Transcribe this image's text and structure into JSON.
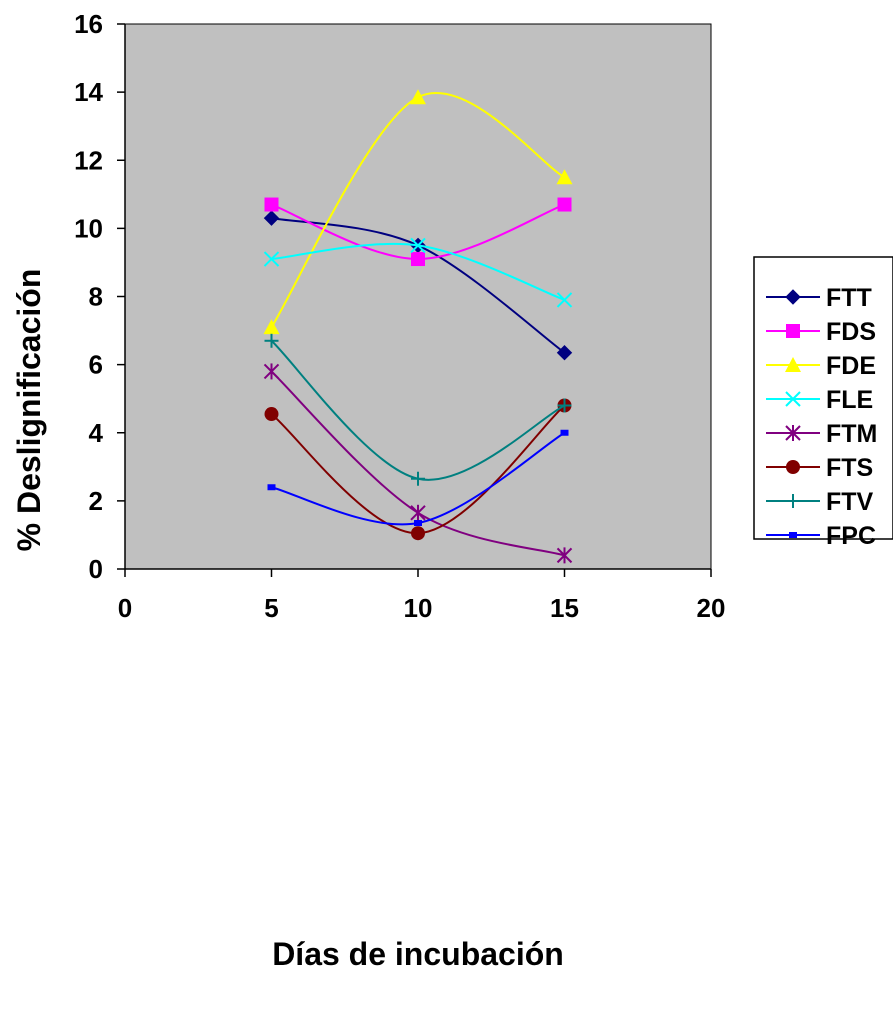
{
  "chart_data": {
    "type": "line",
    "title": "",
    "xlabel": "Días de incubación",
    "ylabel": "% Deslignificación",
    "xlim": [
      0,
      20
    ],
    "ylim": [
      0,
      16
    ],
    "xticks": [
      0,
      5,
      10,
      15,
      20
    ],
    "yticks": [
      0,
      2,
      4,
      6,
      8,
      10,
      12,
      14,
      16
    ],
    "x": [
      5,
      10,
      15
    ],
    "grid": false,
    "plot_background": "#c0c0c0",
    "legend_position": "right",
    "series": [
      {
        "name": "FTT",
        "values": [
          10.3,
          9.5,
          6.35
        ],
        "color": "#000080",
        "marker": "diamond"
      },
      {
        "name": "FDS",
        "values": [
          10.7,
          9.1,
          10.7
        ],
        "color": "#ff00ff",
        "marker": "square"
      },
      {
        "name": "FDE",
        "values": [
          7.1,
          13.85,
          11.5
        ],
        "color": "#ffff00",
        "marker": "triangle"
      },
      {
        "name": "FLE",
        "values": [
          9.1,
          9.5,
          7.9
        ],
        "color": "#00ffff",
        "marker": "x"
      },
      {
        "name": "FTM",
        "values": [
          5.8,
          1.65,
          0.4
        ],
        "color": "#800080",
        "marker": "asterisk"
      },
      {
        "name": "FTS",
        "values": [
          4.55,
          1.05,
          4.8
        ],
        "color": "#800000",
        "marker": "circle"
      },
      {
        "name": "FTV",
        "values": [
          6.7,
          2.65,
          4.8
        ],
        "color": "#008080",
        "marker": "plus"
      },
      {
        "name": "FPC",
        "values": [
          2.4,
          1.35,
          4.0
        ],
        "color": "#0000ff",
        "marker": "dash"
      }
    ]
  }
}
